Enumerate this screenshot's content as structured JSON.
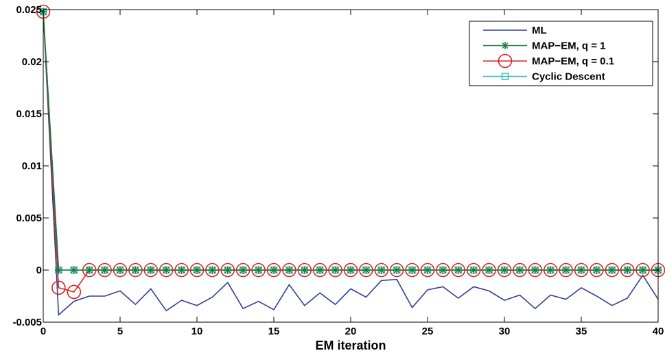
{
  "chart_data": {
    "type": "line",
    "title": "",
    "xlabel": "EM iteration",
    "ylabel": "",
    "xlim": [
      0,
      40
    ],
    "ylim": [
      -0.005,
      0.025
    ],
    "xticks": [
      0,
      5,
      10,
      15,
      20,
      25,
      30,
      35,
      40
    ],
    "xtick_labels": [
      "0",
      "5",
      "10",
      "15",
      "20",
      "25",
      "30",
      "35",
      "40"
    ],
    "yticks": [
      -0.005,
      0,
      0.005,
      0.01,
      0.015,
      0.02,
      0.025
    ],
    "ytick_labels": [
      "-0.005",
      "0",
      "0.005",
      "0.01",
      "0.015",
      "0.02",
      "0.025"
    ],
    "grid": false,
    "legend_position": "top-right",
    "x": [
      0,
      1,
      2,
      3,
      4,
      5,
      6,
      7,
      8,
      9,
      10,
      11,
      12,
      13,
      14,
      15,
      16,
      17,
      18,
      19,
      20,
      21,
      22,
      23,
      24,
      25,
      26,
      27,
      28,
      29,
      30,
      31,
      32,
      33,
      34,
      35,
      36,
      37,
      38,
      39,
      40
    ],
    "series": [
      {
        "name": "ML",
        "color": "#2e3f99",
        "marker": "none",
        "values": [
          0.0248,
          -0.0043,
          -0.003,
          -0.0025,
          -0.0025,
          -0.002,
          -0.0033,
          -0.0018,
          -0.0039,
          -0.0029,
          -0.0034,
          -0.0026,
          -0.0012,
          -0.0037,
          -0.003,
          -0.0038,
          -0.0014,
          -0.0034,
          -0.0022,
          -0.0033,
          -0.0018,
          -0.0026,
          -0.001,
          -0.0009,
          -0.0036,
          -0.0019,
          -0.0016,
          -0.0027,
          -0.0016,
          -0.002,
          -0.0029,
          -0.0024,
          -0.0037,
          -0.0024,
          -0.0028,
          -0.0017,
          -0.0025,
          -0.0034,
          -0.0027,
          -0.0005,
          -0.0028
        ]
      },
      {
        "name": "MAP−EM, q = 1",
        "color": "#1a7a3a",
        "marker": "star",
        "values": [
          0.0248,
          0,
          0,
          0,
          0,
          0,
          0,
          0,
          0,
          0,
          0,
          0,
          0,
          0,
          0,
          0,
          0,
          0,
          0,
          0,
          0,
          0,
          0,
          0,
          0,
          0,
          0,
          0,
          0,
          0,
          0,
          0,
          0,
          0,
          0,
          0,
          0,
          0,
          0,
          0,
          0
        ]
      },
      {
        "name": "MAP−EM, q = 0.1",
        "color": "#dd2222",
        "marker": "circle",
        "values": [
          0.0248,
          -0.0017,
          -0.0021,
          0,
          0,
          0,
          0,
          0,
          0,
          0,
          0,
          0,
          0,
          0,
          0,
          0,
          0,
          0,
          0,
          0,
          0,
          0,
          0,
          0,
          0,
          0,
          0,
          0,
          0,
          0,
          0,
          0,
          0,
          0,
          0,
          0,
          0,
          0,
          0,
          0,
          0
        ]
      },
      {
        "name": "Cyclic Descent",
        "color": "#3fbfbf",
        "marker": "square",
        "values": [
          0.0248,
          0,
          0,
          0,
          0,
          0,
          0,
          0,
          0,
          0,
          0,
          0,
          0,
          0,
          0,
          0,
          0,
          0,
          0,
          0,
          0,
          0,
          0,
          0,
          0,
          0,
          0,
          0,
          0,
          0,
          0,
          0,
          0,
          0,
          0,
          0,
          0,
          0,
          0,
          0,
          0
        ]
      }
    ]
  }
}
